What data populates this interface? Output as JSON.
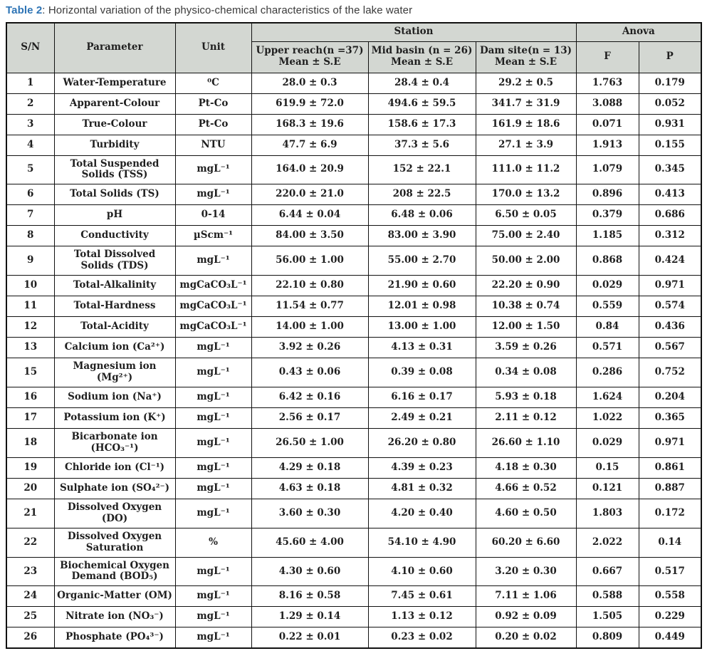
{
  "colors": {
    "caption_accent_blue": "#2e74b5",
    "caption_text": "#3a3a3a",
    "header_background": "#d3d7d2",
    "table_border": "#111111",
    "table_text": "#1f1f1f"
  },
  "caption": {
    "label": "Table 2",
    "rest": ": Horizontal variation of the physico-chemical characteristics of the lake water"
  },
  "table": {
    "header": {
      "sn": "S/N",
      "parameter": "Parameter",
      "unit": "Unit",
      "station_group": "Station",
      "anova_group": "Anova",
      "stations": [
        {
          "line1": "Upper reach(n =37)",
          "line2": "Mean ± S.E"
        },
        {
          "line1": "Mid basin (n = 26)",
          "line2": "Mean ± S.E"
        },
        {
          "line1": "Dam site(n = 13)",
          "line2": "Mean ± S.E"
        }
      ],
      "f": "F",
      "p": "P"
    },
    "rows": [
      {
        "sn": "1",
        "parameter": "Water-Temperature",
        "unit": "⁰C",
        "upper": "28.0 ± 0.3",
        "mid": "28.4 ± 0.4",
        "dam": "29.2 ± 0.5",
        "f": "1.763",
        "p": "0.179"
      },
      {
        "sn": "2",
        "parameter": "Apparent-Colour",
        "unit": "Pt-Co",
        "upper": "619.9 ± 72.0",
        "mid": "494.6 ± 59.5",
        "dam": "341.7 ± 31.9",
        "f": "3.088",
        "p": "0.052"
      },
      {
        "sn": "3",
        "parameter": "True-Colour",
        "unit": "Pt-Co",
        "upper": "168.3 ± 19.6",
        "mid": "158.6 ± 17.3",
        "dam": "161.9 ± 18.6",
        "f": "0.071",
        "p": "0.931"
      },
      {
        "sn": "4",
        "parameter": "Turbidity",
        "unit": "NTU",
        "upper": "47.7 ± 6.9",
        "mid": "37.3 ± 5.6",
        "dam": "27.1 ± 3.9",
        "f": "1.913",
        "p": "0.155"
      },
      {
        "sn": "5",
        "parameter": "Total Suspended Solids (TSS)",
        "unit": "mgL⁻¹",
        "upper": "164.0 ± 20.9",
        "mid": "152 ± 22.1",
        "dam": "111.0 ± 11.2",
        "f": "1.079",
        "p": "0.345"
      },
      {
        "sn": "6",
        "parameter": "Total Solids (TS)",
        "unit": "mgL⁻¹",
        "upper": "220.0 ± 21.0",
        "mid": "208 ± 22.5",
        "dam": "170.0 ± 13.2",
        "f": "0.896",
        "p": "0.413"
      },
      {
        "sn": "7",
        "parameter": "pH",
        "unit": "0-14",
        "upper": "6.44 ± 0.04",
        "mid": "6.48 ± 0.06",
        "dam": "6.50 ± 0.05",
        "f": "0.379",
        "p": "0.686"
      },
      {
        "sn": "8",
        "parameter": "Conductivity",
        "unit": "µScm⁻¹",
        "upper": "84.00 ± 3.50",
        "mid": "83.00 ± 3.90",
        "dam": "75.00 ± 2.40",
        "f": "1.185",
        "p": "0.312"
      },
      {
        "sn": "9",
        "parameter": "Total Dissolved Solids (TDS)",
        "unit": "mgL⁻¹",
        "upper": "56.00 ± 1.00",
        "mid": "55.00 ± 2.70",
        "dam": "50.00 ± 2.00",
        "f": "0.868",
        "p": "0.424"
      },
      {
        "sn": "10",
        "parameter": "Total-Alkalinity",
        "unit": "mgCaCO₃L⁻¹",
        "upper": "22.10 ± 0.80",
        "mid": "21.90 ± 0.60",
        "dam": "22.20 ± 0.90",
        "f": "0.029",
        "p": "0.971"
      },
      {
        "sn": "11",
        "parameter": "Total-Hardness",
        "unit": "mgCaCO₃L⁻¹",
        "upper": "11.54 ± 0.77",
        "mid": "12.01 ± 0.98",
        "dam": "10.38 ± 0.74",
        "f": "0.559",
        "p": "0.574"
      },
      {
        "sn": "12",
        "parameter": "Total-Acidity",
        "unit": "mgCaCO₃L⁻¹",
        "upper": "14.00 ± 1.00",
        "mid": "13.00 ± 1.00",
        "dam": "12.00 ± 1.50",
        "f": "0.84",
        "p": "0.436"
      },
      {
        "sn": "13",
        "parameter": "Calcium ion (Ca²⁺)",
        "unit": "mgL⁻¹",
        "upper": "3.92 ± 0.26",
        "mid": "4.13 ± 0.31",
        "dam": "3.59 ± 0.26",
        "f": "0.571",
        "p": "0.567"
      },
      {
        "sn": "15",
        "parameter": "Magnesium ion (Mg²⁺)",
        "unit": "mgL⁻¹",
        "upper": "0.43 ± 0.06",
        "mid": "0.39 ± 0.08",
        "dam": "0.34 ± 0.08",
        "f": "0.286",
        "p": "0.752"
      },
      {
        "sn": "16",
        "parameter": "Sodium ion (Na⁺)",
        "unit": "mgL⁻¹",
        "upper": "6.42 ± 0.16",
        "mid": "6.16 ± 0.17",
        "dam": "5.93 ± 0.18",
        "f": "1.624",
        "p": "0.204"
      },
      {
        "sn": "17",
        "parameter": "Potassium ion (K⁺)",
        "unit": "mgL⁻¹",
        "upper": "2.56 ± 0.17",
        "mid": "2.49 ± 0.21",
        "dam": "2.11 ± 0.12",
        "f": "1.022",
        "p": "0.365"
      },
      {
        "sn": "18",
        "parameter": "Bicarbonate ion (HCO₃⁻¹)",
        "unit": "mgL⁻¹",
        "upper": "26.50 ± 1.00",
        "mid": "26.20 ± 0.80",
        "dam": "26.60 ± 1.10",
        "f": "0.029",
        "p": "0.971"
      },
      {
        "sn": "19",
        "parameter": "Chloride ion (Cl⁻¹)",
        "unit": "mgL⁻¹",
        "upper": "4.29 ± 0.18",
        "mid": "4.39 ± 0.23",
        "dam": "4.18 ± 0.30",
        "f": "0.15",
        "p": "0.861"
      },
      {
        "sn": "20",
        "parameter": "Sulphate ion (SO₄²⁻)",
        "unit": "mgL⁻¹",
        "upper": "4.63 ± 0.18",
        "mid": "4.81 ± 0.32",
        "dam": "4.66 ± 0.52",
        "f": "0.121",
        "p": "0.887"
      },
      {
        "sn": "21",
        "parameter": "Dissolved Oxygen (DO)",
        "unit": "mgL⁻¹",
        "upper": "3.60 ± 0.30",
        "mid": "4.20 ± 0.40",
        "dam": "4.60 ± 0.50",
        "f": "1.803",
        "p": "0.172"
      },
      {
        "sn": "22",
        "parameter": "Dissolved Oxygen Saturation",
        "unit": "%",
        "upper": "45.60 ± 4.00",
        "mid": "54.10 ± 4.90",
        "dam": "60.20 ± 6.60",
        "f": "2.022",
        "p": "0.14"
      },
      {
        "sn": "23",
        "parameter": "Biochemical Oxygen Demand (BOD₅)",
        "unit": "mgL⁻¹",
        "upper": "4.30 ± 0.60",
        "mid": "4.10 ± 0.60",
        "dam": "3.20 ± 0.30",
        "f": "0.667",
        "p": "0.517"
      },
      {
        "sn": "24",
        "parameter": "Organic-Matter (OM)",
        "unit": "mgL⁻¹",
        "upper": "8.16 ± 0.58",
        "mid": "7.45 ± 0.61",
        "dam": "7.11 ± 1.06",
        "f": "0.588",
        "p": "0.558"
      },
      {
        "sn": "25",
        "parameter": "Nitrate ion (NO₃⁻)",
        "unit": "mgL⁻¹",
        "upper": "1.29 ± 0.14",
        "mid": "1.13 ± 0.12",
        "dam": "0.92 ± 0.09",
        "f": "1.505",
        "p": "0.229"
      },
      {
        "sn": "26",
        "parameter": "Phosphate (PO₄³⁻)",
        "unit": "mgL⁻¹",
        "upper": "0.22 ± 0.01",
        "mid": "0.23 ± 0.02",
        "dam": "0.20 ± 0.02",
        "f": "0.809",
        "p": "0.449"
      }
    ]
  }
}
